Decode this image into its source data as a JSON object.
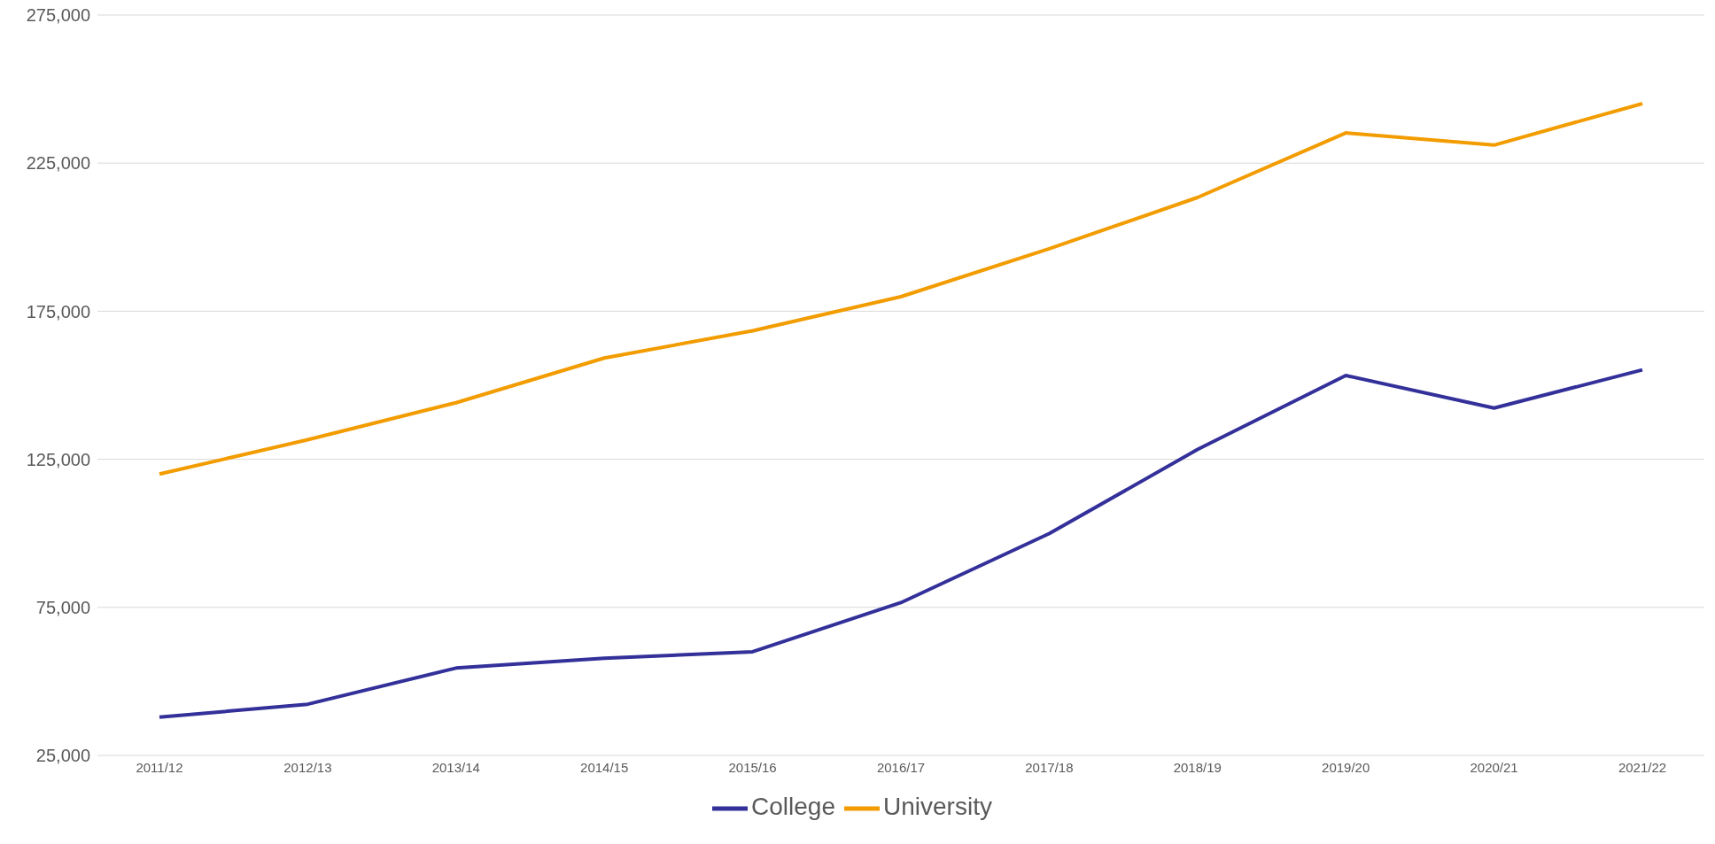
{
  "chart_data": {
    "type": "line",
    "categories": [
      "2011/12",
      "2012/13",
      "2013/14",
      "2014/15",
      "2015/16",
      "2016/17",
      "2017/18",
      "2018/19",
      "2019/20",
      "2020/21",
      "2021/22"
    ],
    "series": [
      {
        "name": "University",
        "color": "#f29c00",
        "values": [
          120000,
          131600,
          144100,
          159200,
          168400,
          179900,
          196100,
          213400,
          235200,
          231100,
          245100
        ]
      },
      {
        "name": "College",
        "color": "#33309a",
        "values": [
          37900,
          42300,
          54500,
          57800,
          60000,
          76600,
          99900,
          128300,
          153300,
          142300,
          155200
        ]
      }
    ],
    "ylim": [
      25000,
      275000
    ],
    "yticks": [
      {
        "value": 25000,
        "label": "25,000"
      },
      {
        "value": 75000,
        "label": "75,000"
      },
      {
        "value": 125000,
        "label": "125,000"
      },
      {
        "value": 175000,
        "label": "175,000"
      },
      {
        "value": 225000,
        "label": "225,000"
      },
      {
        "value": 275000,
        "label": "275,000"
      }
    ],
    "grid": "y",
    "legend": "bottom",
    "marker": "none",
    "line_style": "solid"
  }
}
